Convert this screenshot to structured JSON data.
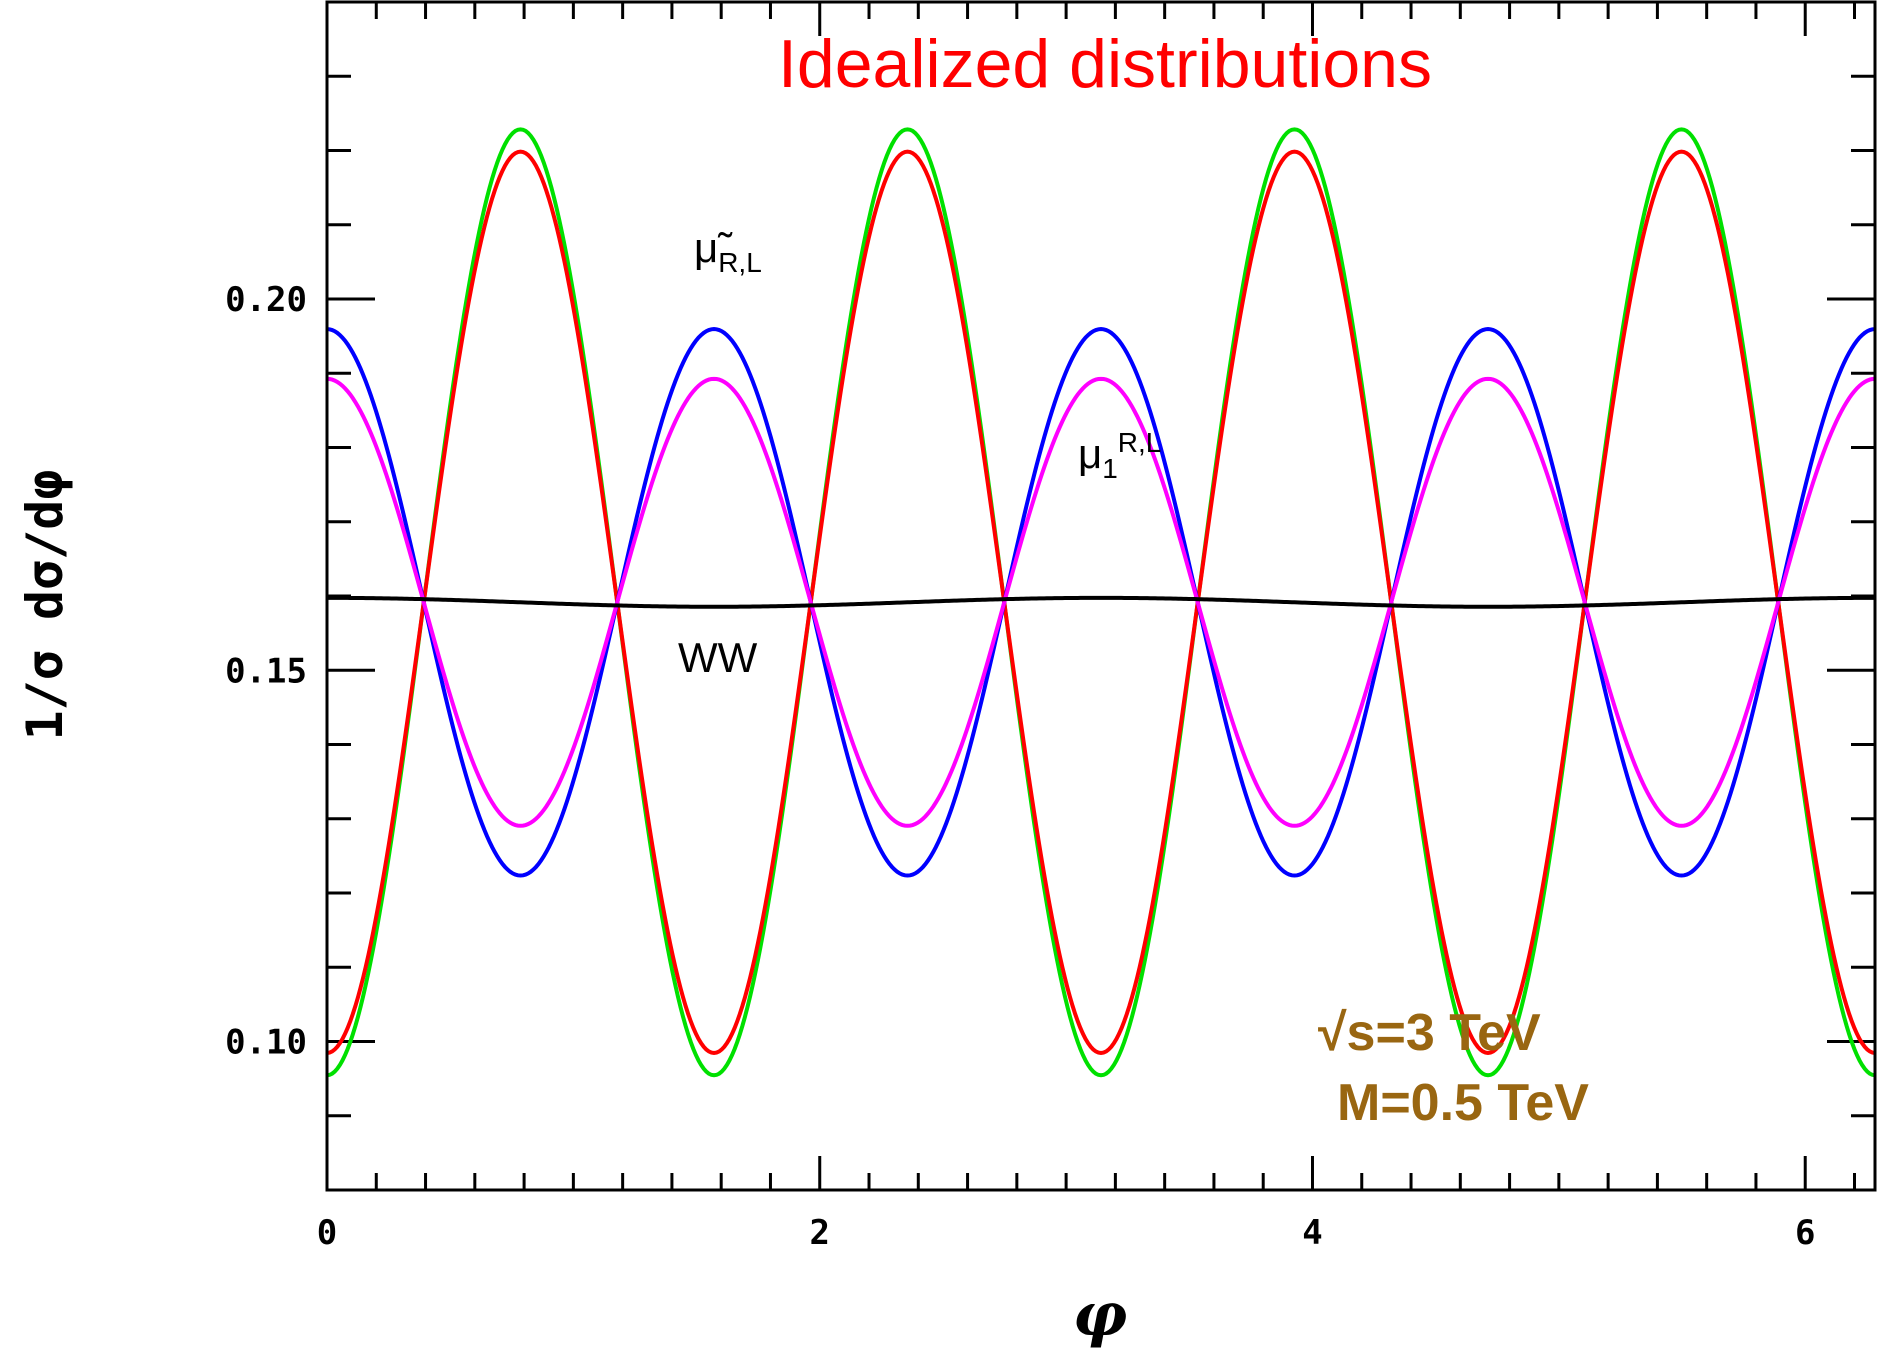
{
  "chart_data": {
    "type": "line",
    "title": "Idealized distributions",
    "xlabel": "φ",
    "ylabel": "1/σ dσ/dφ",
    "xlim": [
      0,
      6.2832
    ],
    "ylim": [
      0.08,
      0.24
    ],
    "x_ticks": [
      0,
      2,
      4,
      6
    ],
    "x_tick_labels": [
      "0",
      "2",
      "4",
      "6"
    ],
    "y_ticks": [
      0.1,
      0.15,
      0.2
    ],
    "y_tick_labels": [
      "0.10",
      "0.15",
      "0.20"
    ],
    "grid": false,
    "series": [
      {
        "name": "",
        "color": "#00e000",
        "model": {
          "base": 0.15915,
          "amplitude": -0.0637,
          "frequency": 4
        }
      },
      {
        "name": "",
        "color": "#ff0000",
        "model": {
          "base": 0.15915,
          "amplitude": -0.0607,
          "frequency": 4
        }
      },
      {
        "name": "",
        "color": "#0000ff",
        "model": {
          "base": 0.15915,
          "amplitude": 0.0368,
          "frequency": 4
        }
      },
      {
        "name": "",
        "color": "#ff00ff",
        "model": {
          "base": 0.15915,
          "amplitude": 0.0301,
          "frequency": 4
        }
      },
      {
        "name": "",
        "color": "#000000",
        "model": {
          "base": 0.15915,
          "amplitude": 0.0006,
          "frequency": 2
        }
      }
    ],
    "annotations": {
      "smuon_main": "μ̃",
      "smuon_sub": "R,L",
      "kk_main": "μ",
      "kk_sub": "1",
      "kk_sup": "R,L",
      "ww": "WW",
      "energy_line1": "√s=3 TeV",
      "energy_line2": "M=0.5 TeV"
    },
    "colors": {
      "title": "#ff0000",
      "energy": "#996611"
    }
  }
}
